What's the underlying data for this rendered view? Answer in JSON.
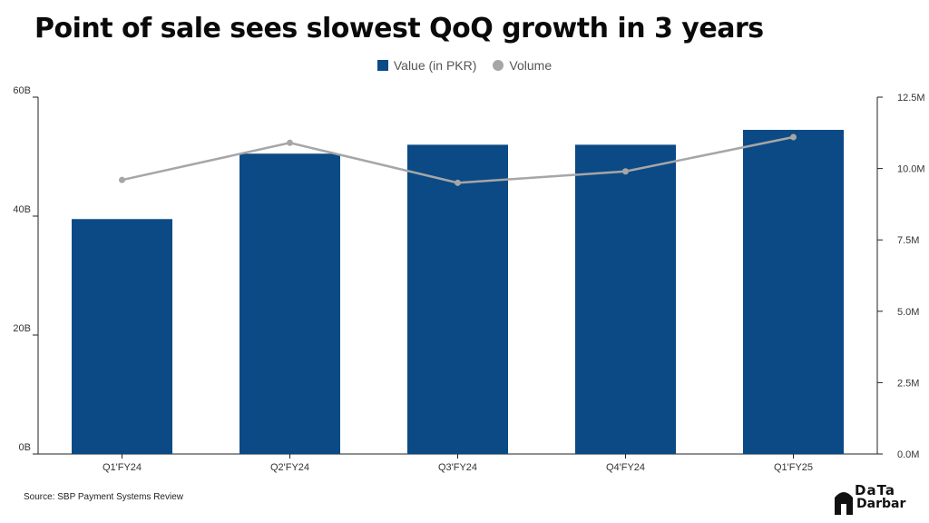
{
  "title": "Point of sale sees slowest QoQ growth in 3 years",
  "legend": {
    "bar_label": "Value (in PKR)",
    "line_label": "Volume"
  },
  "source": "Source: SBP Payment Systems Review",
  "brand": {
    "top": "DaTa",
    "name": "Darbar"
  },
  "colors": {
    "bar": "#0b4a85",
    "line": "#a6a6a6",
    "axis": "#222222"
  },
  "chart_data": {
    "type": "bar",
    "categories": [
      "Q1'FY24",
      "Q2'FY24",
      "Q3'FY24",
      "Q4'FY24",
      "Q1'FY25"
    ],
    "series": [
      {
        "name": "Value (in PKR)",
        "type": "bar",
        "axis": "left",
        "values": [
          39.5,
          50.5,
          52,
          52,
          54.5
        ]
      },
      {
        "name": "Volume",
        "type": "line",
        "axis": "right",
        "values": [
          9.6,
          10.9,
          9.5,
          9.9,
          11.1
        ]
      }
    ],
    "left_axis": {
      "ylim": [
        0,
        60
      ],
      "ticks": [
        "0B",
        "20B",
        "40B",
        "60B"
      ],
      "tick_values": [
        0,
        20,
        40,
        60
      ]
    },
    "right_axis": {
      "ylim": [
        0,
        12.5
      ],
      "ticks": [
        "0.0M",
        "2.5M",
        "5.0M",
        "7.5M",
        "10.0M",
        "12.5M"
      ],
      "tick_values": [
        0,
        2.5,
        5,
        7.5,
        10,
        12.5
      ]
    },
    "grid": false,
    "legend_position": "top-center"
  }
}
